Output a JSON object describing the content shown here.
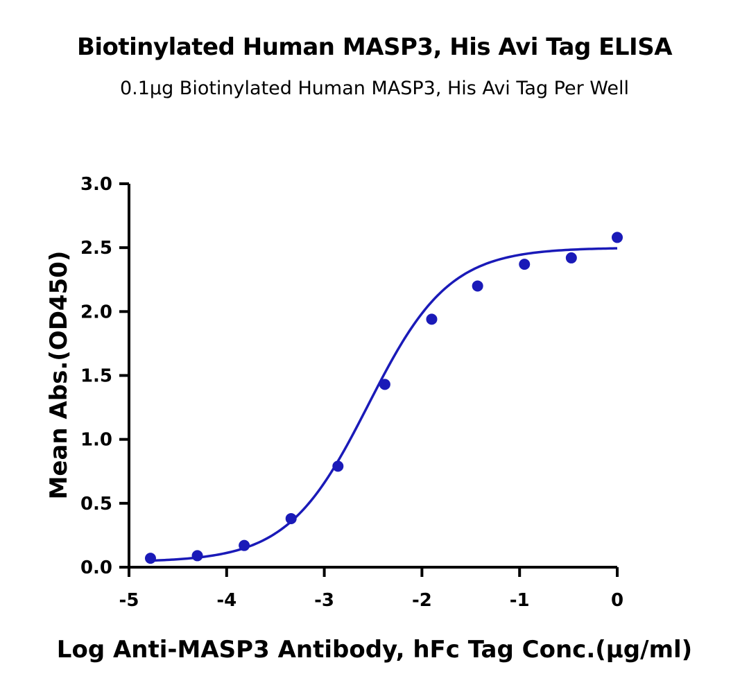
{
  "chart_data": {
    "type": "scatter",
    "title": "Biotinylated Human MASP3, His Avi Tag ELISA",
    "subtitle": "0.1μg Biotinylated Human MASP3, His Avi Tag Per Well",
    "xlabel": "Log Anti-MASP3 Antibody, hFc Tag Conc.(μg/ml)",
    "ylabel": "Mean Abs.(OD450)",
    "xlim": [
      -5,
      0
    ],
    "ylim": [
      0,
      3.0
    ],
    "x_ticks": [
      "-5",
      "-4",
      "-3",
      "-2",
      "-1",
      "0"
    ],
    "y_ticks": [
      "0.0",
      "0.5",
      "1.0",
      "1.5",
      "2.0",
      "2.5",
      "3.0"
    ],
    "grid": false,
    "series": [
      {
        "color": "#1a1ab8",
        "x": [
          -4.78,
          -4.3,
          -3.82,
          -3.34,
          -2.86,
          -2.38,
          -1.9,
          -1.43,
          -0.95,
          -0.47,
          0.0
        ],
        "y": [
          0.07,
          0.09,
          0.17,
          0.38,
          0.79,
          1.43,
          1.94,
          2.2,
          2.37,
          2.42,
          2.58
        ]
      }
    ],
    "fit": {
      "type": "4PL",
      "bottom": 0.04,
      "top": 2.5,
      "logEC50": -2.55,
      "hill": 1.05
    }
  }
}
